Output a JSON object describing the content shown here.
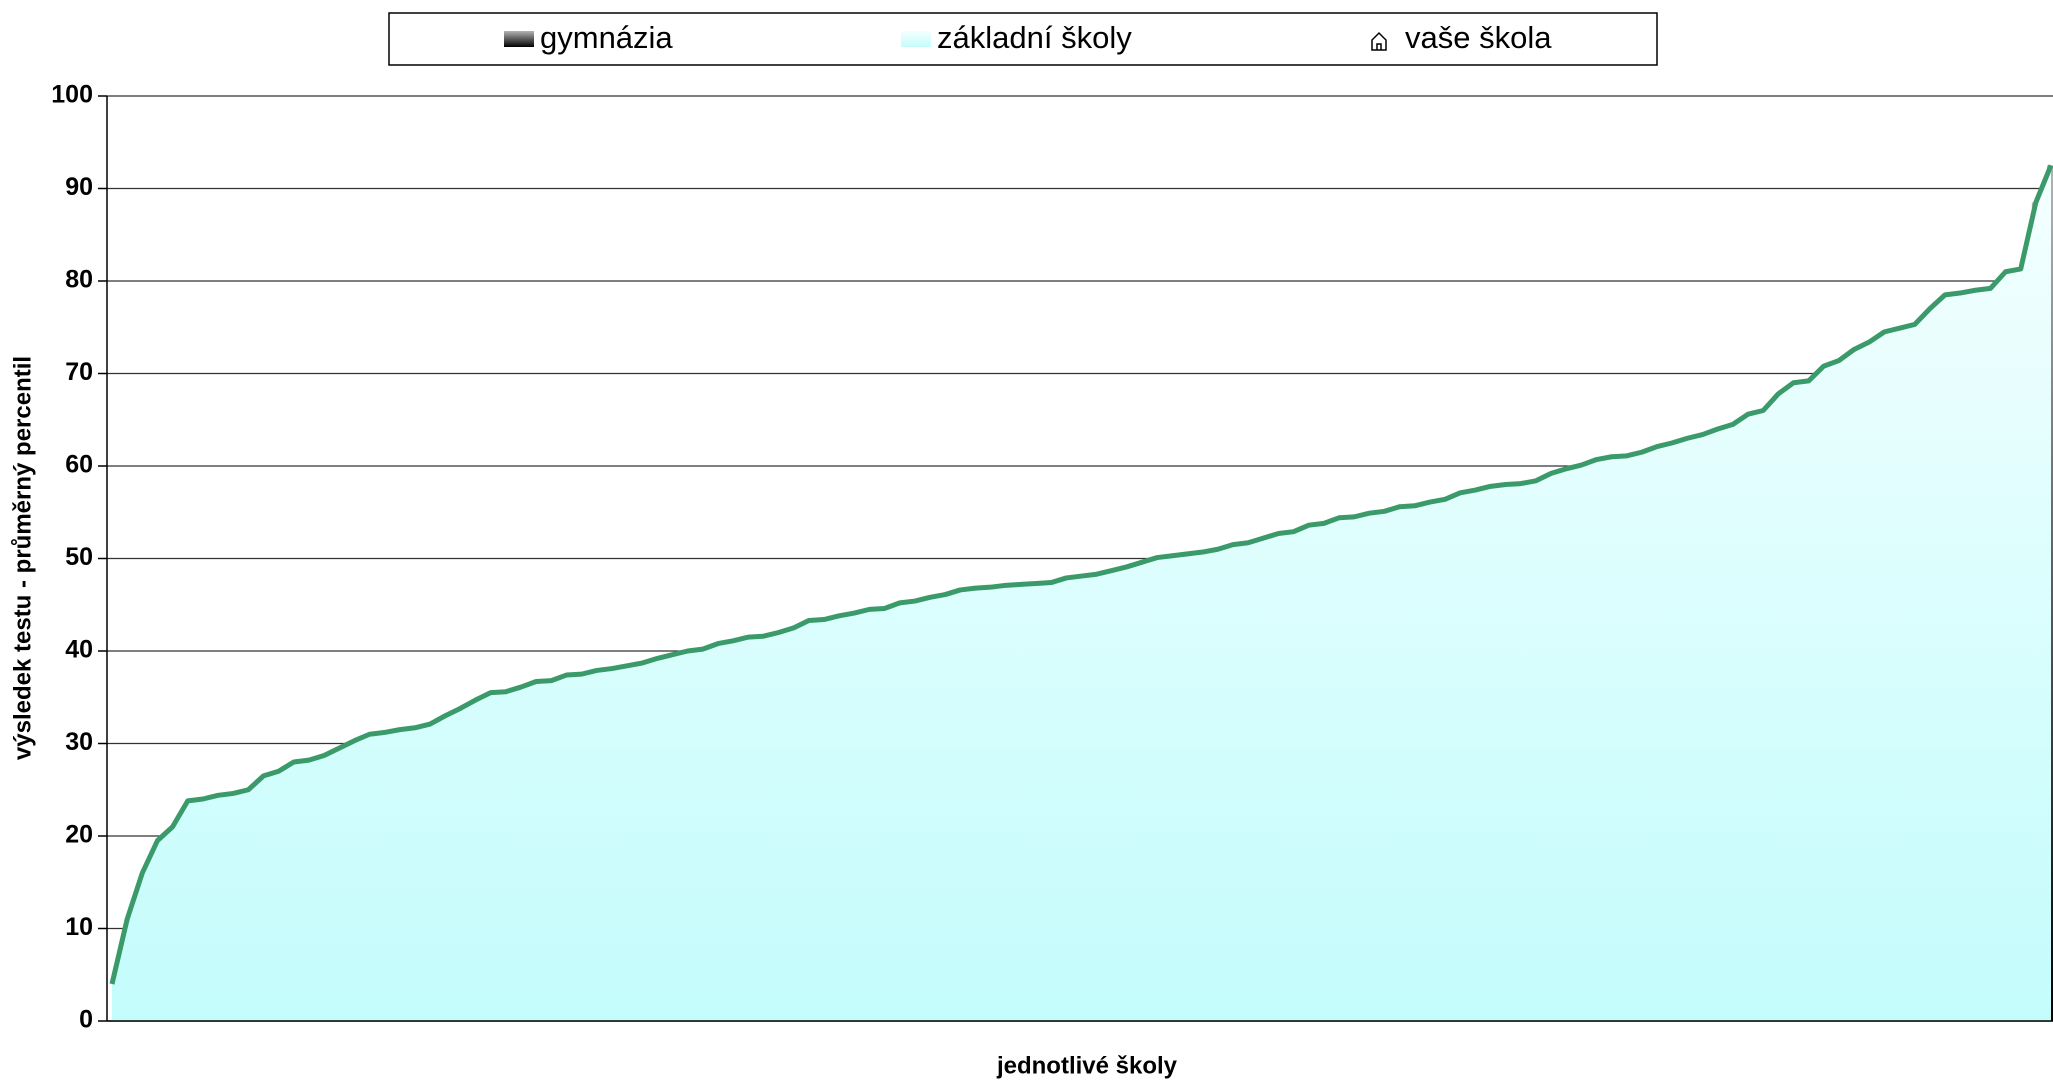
{
  "chart_data": {
    "type": "area",
    "xlabel": "jednotlivé školy",
    "ylabel": "výsledek testu - průměrný percentil",
    "ylim": [
      0,
      100
    ],
    "yticks": [
      0,
      10,
      20,
      30,
      40,
      50,
      60,
      70,
      80,
      90,
      100
    ],
    "grid": true,
    "legend": "top",
    "series": [
      {
        "name": "gymnázia",
        "type": "bar",
        "color": "#a0a0a0",
        "values": [
          null,
          null,
          null,
          null,
          null,
          null,
          null,
          null,
          null,
          null,
          null,
          null,
          null,
          null,
          null,
          null,
          null,
          null,
          null,
          null,
          null,
          null,
          null,
          null,
          null,
          null,
          null,
          null,
          null,
          null,
          null,
          null,
          null,
          null,
          null,
          null,
          null,
          null,
          null,
          null,
          null,
          null,
          null,
          null,
          null,
          null,
          null,
          null,
          null,
          null,
          null,
          null,
          null,
          null,
          null,
          null,
          null,
          null,
          null,
          null,
          null,
          null,
          null,
          null,
          null,
          null,
          null,
          null,
          null,
          null,
          null,
          null,
          null,
          null,
          null,
          null,
          null,
          null,
          null,
          null,
          null,
          null,
          null,
          null,
          null,
          null,
          null,
          null,
          null,
          null,
          null,
          null,
          null,
          null,
          null,
          null,
          null,
          null,
          null,
          null,
          null,
          null,
          null,
          null,
          null,
          null,
          null,
          null,
          null,
          null,
          67.8,
          null,
          null,
          null,
          null,
          null,
          null,
          74.5,
          null,
          null,
          77,
          null,
          null,
          79,
          79.2,
          null,
          null,
          88.5,
          92.5
        ]
      },
      {
        "name": "základní školy",
        "type": "area",
        "color": "#3a9a6a",
        "values": [
          4,
          11,
          16,
          19.5,
          21,
          23.8,
          24,
          24.4,
          24.6,
          25,
          26.5,
          27,
          28,
          28.2,
          28.7,
          29.5,
          30.3,
          31,
          31.2,
          31.5,
          31.7,
          32.1,
          33,
          33.8,
          34.7,
          35.5,
          35.6,
          36.1,
          36.7,
          36.8,
          37.4,
          37.5,
          37.9,
          38.1,
          38.4,
          38.7,
          39.2,
          39.6,
          40,
          40.2,
          40.8,
          41.1,
          41.5,
          41.6,
          42,
          42.5,
          43.3,
          43.4,
          43.8,
          44.1,
          44.5,
          44.6,
          45.2,
          45.4,
          45.8,
          46.1,
          46.6,
          46.8,
          46.9,
          47.1,
          47.2,
          47.3,
          47.4,
          47.9,
          48.1,
          48.3,
          48.7,
          49.1,
          49.6,
          50.1,
          50.3,
          50.5,
          50.7,
          51,
          51.5,
          51.7,
          52.2,
          52.7,
          52.9,
          53.6,
          53.8,
          54.4,
          54.5,
          54.9,
          55.1,
          55.6,
          55.7,
          56.1,
          56.4,
          57.1,
          57.4,
          57.8,
          58,
          58.1,
          58.4,
          59.2,
          59.7,
          60.1,
          60.7,
          61,
          61.1,
          61.5,
          62.1,
          62.5,
          63,
          63.4,
          64,
          64.5,
          65.6,
          66,
          67.8,
          69,
          69.2,
          70.8,
          71.4,
          72.6,
          73.4,
          74.5,
          74.9,
          75.3,
          77,
          78.5,
          78.7,
          79,
          79.2,
          81,
          81.3,
          88.5,
          92.5
        ]
      },
      {
        "name": "vaše škola"
      }
    ]
  }
}
